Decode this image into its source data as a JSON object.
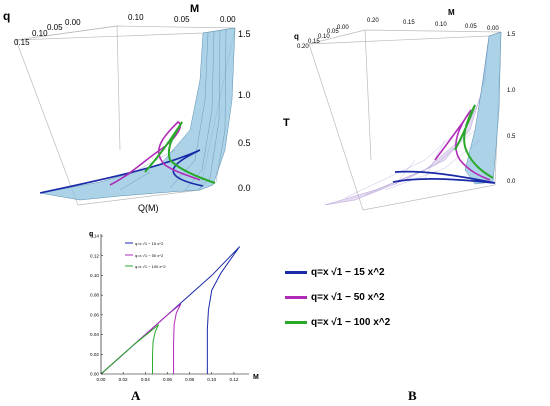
{
  "panel_a_label": "A",
  "panel_b_label": "B",
  "left_3d": {
    "q_axis_label": "q",
    "q_ticks": [
      "0.15",
      "0.10",
      "0.05",
      "0.00"
    ],
    "m_axis_label": "M",
    "m_ticks": [
      "0.10",
      "0.05",
      "0.00"
    ],
    "vertical_ticks": [
      "1.5",
      "1.0",
      "0.5",
      "0.0"
    ],
    "bottom_label": "Q(M)"
  },
  "right_3d": {
    "q_axis_label": "q",
    "q_ticks": [
      "0.20",
      "0.15",
      "0.10",
      "0.05",
      "0.00"
    ],
    "m_axis_label": "M",
    "m_ticks": [
      "0.20",
      "0.15",
      "0.10",
      "0.05",
      "0.00"
    ],
    "vertical_ticks": [
      "1.5",
      "1.0",
      "0.5",
      "0.0"
    ],
    "vertical_label": "T"
  },
  "legend_b": [
    {
      "label": "q=x √1 − 15 x^2",
      "color": "#1a2aa8"
    },
    {
      "label": "q=x √1 − 50 x^2",
      "color": "#b02ab8"
    },
    {
      "label": "q=x √1 − 100 x^2",
      "color": "#2aa82a"
    }
  ],
  "colors": {
    "blue": "#1a2aa8",
    "magenta": "#b02ab8",
    "green": "#2aa82a",
    "surface": "#8fc3df"
  },
  "chart_data": {
    "type": "line",
    "title": "",
    "xlabel": "M",
    "ylabel": "q",
    "xlim": [
      0,
      0.13
    ],
    "ylim": [
      0,
      0.14
    ],
    "x_ticks": [
      "0.00",
      "0.02",
      "0.04",
      "0.06",
      "0.08",
      "0.10",
      "0.12"
    ],
    "y_ticks": [
      "0.00",
      "0.02",
      "0.04",
      "0.06",
      "0.08",
      "0.10",
      "0.12",
      "0.14"
    ],
    "legend_placement": "top-left",
    "series": [
      {
        "name": "q=x √1 − 15 x^2",
        "color": "#1a2aa8",
        "points": [
          [
            0.0,
            0.0
          ],
          [
            0.05,
            0.05
          ],
          [
            0.1,
            0.1
          ],
          [
            0.125,
            0.129
          ],
          [
            0.118,
            0.118
          ],
          [
            0.108,
            0.102
          ],
          [
            0.1,
            0.085
          ],
          [
            0.097,
            0.065
          ],
          [
            0.096,
            0.045
          ],
          [
            0.096,
            0.0
          ]
        ]
      },
      {
        "name": "q=x √1 − 50 x^2",
        "color": "#b02ab8",
        "points": [
          [
            0.0,
            0.0
          ],
          [
            0.03,
            0.03
          ],
          [
            0.06,
            0.06
          ],
          [
            0.072,
            0.071
          ],
          [
            0.068,
            0.062
          ],
          [
            0.066,
            0.05
          ],
          [
            0.0655,
            0.03
          ],
          [
            0.0655,
            0.0
          ]
        ]
      },
      {
        "name": "q=x √1 − 100 x^2",
        "color": "#2aa82a",
        "points": [
          [
            0.0,
            0.0
          ],
          [
            0.03,
            0.03
          ],
          [
            0.052,
            0.05
          ],
          [
            0.049,
            0.043
          ],
          [
            0.047,
            0.033
          ],
          [
            0.0465,
            0.018
          ],
          [
            0.0465,
            0.0
          ]
        ]
      }
    ]
  }
}
